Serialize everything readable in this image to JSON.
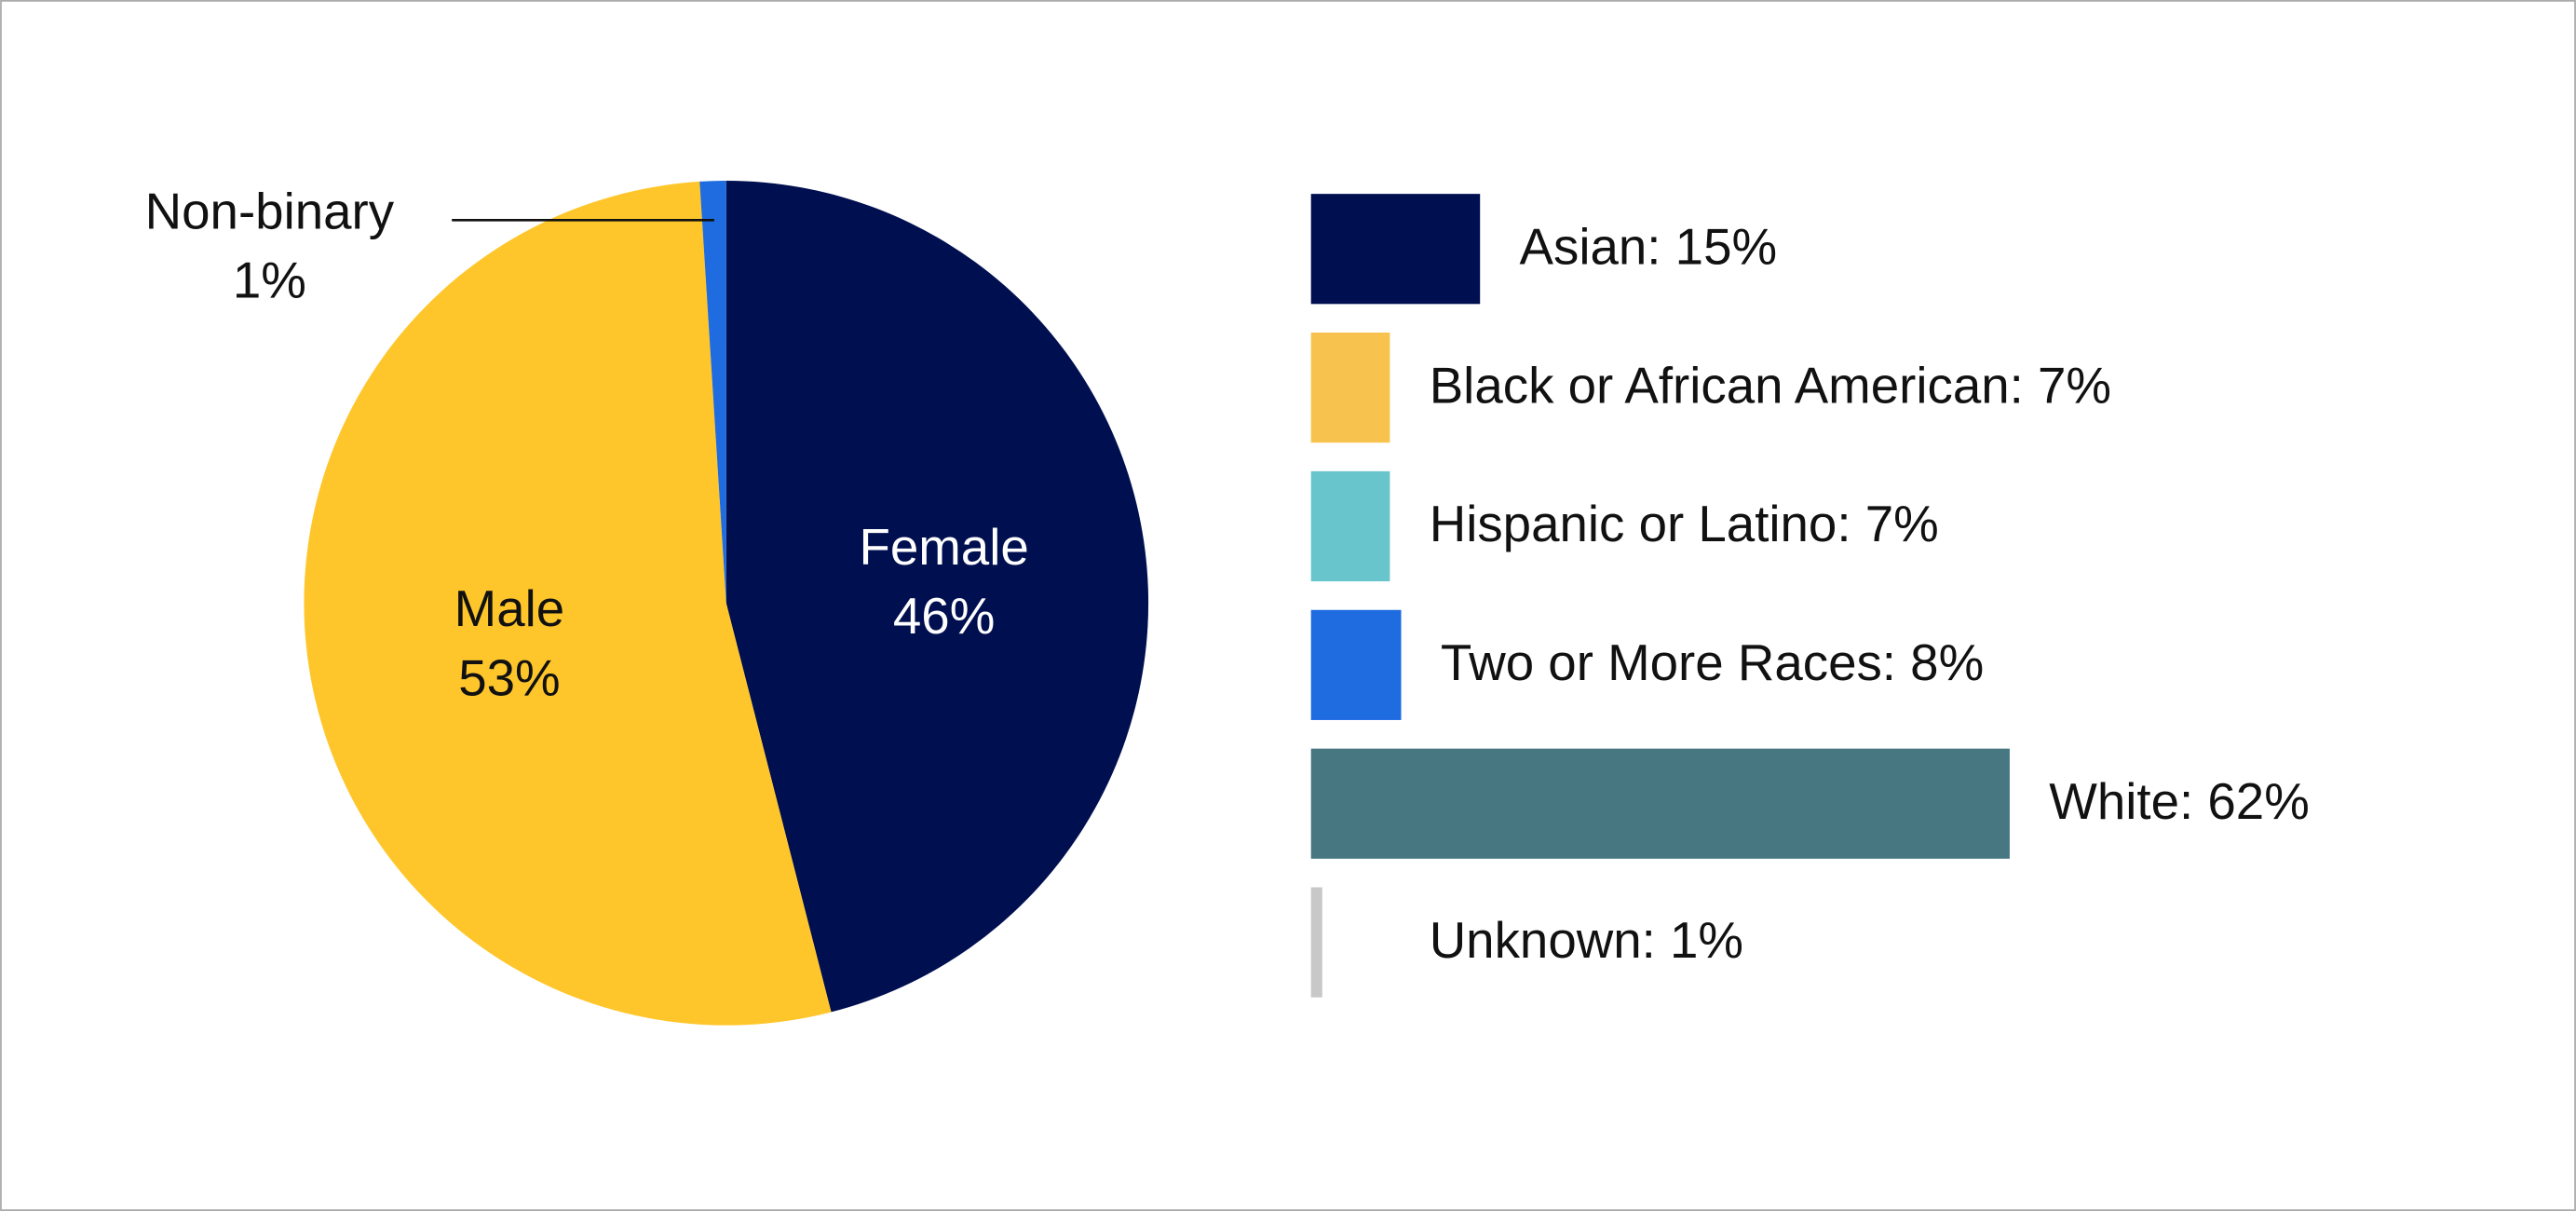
{
  "chart_data": [
    {
      "type": "pie",
      "categories": [
        "Female",
        "Male",
        "Non-binary"
      ],
      "values": [
        46,
        53,
        1
      ],
      "value_labels": [
        "46%",
        "53%",
        "1%"
      ],
      "colors": [
        "#000f4f",
        "#ffc62b",
        "#1f6be0"
      ]
    },
    {
      "type": "bar",
      "values": [
        15,
        7,
        7,
        8,
        62,
        1
      ],
      "value_labels": [
        "Asian: 15%",
        "Black or African American: 7%",
        "Hispanic or Latino: 7%",
        "Two or More Races: 8%",
        "White: 62%",
        "Unknown: 1%"
      ],
      "colors": [
        "#000f4f",
        "#f7c34e",
        "#68c5cc",
        "#1f6be0",
        "#477781",
        "#c8c8c8"
      ]
    }
  ]
}
